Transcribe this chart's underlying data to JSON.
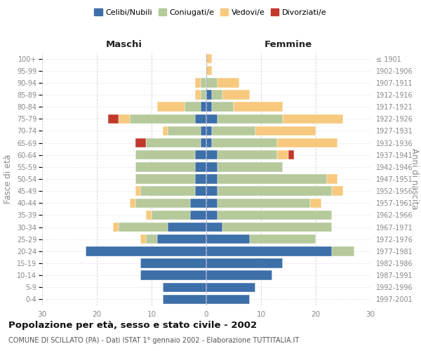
{
  "age_groups": [
    "0-4",
    "5-9",
    "10-14",
    "15-19",
    "20-24",
    "25-29",
    "30-34",
    "35-39",
    "40-44",
    "45-49",
    "50-54",
    "55-59",
    "60-64",
    "65-69",
    "70-74",
    "75-79",
    "80-84",
    "85-89",
    "90-94",
    "95-99",
    "100+"
  ],
  "birth_years": [
    "1997-2001",
    "1992-1996",
    "1987-1991",
    "1982-1986",
    "1977-1981",
    "1972-1976",
    "1967-1971",
    "1962-1966",
    "1957-1961",
    "1952-1956",
    "1947-1951",
    "1942-1946",
    "1937-1941",
    "1932-1936",
    "1927-1931",
    "1922-1926",
    "1917-1921",
    "1912-1916",
    "1907-1911",
    "1902-1906",
    "≤ 1901"
  ],
  "colors": {
    "celibi": "#3d6fa8",
    "coniugati": "#b5c99a",
    "vedovi": "#f7c97e",
    "divorziati": "#c0392b"
  },
  "males": {
    "celibi": [
      8,
      8,
      12,
      12,
      22,
      9,
      7,
      3,
      3,
      2,
      2,
      2,
      2,
      1,
      1,
      2,
      1,
      0,
      0,
      0,
      0
    ],
    "coniugati": [
      0,
      0,
      0,
      0,
      0,
      2,
      9,
      7,
      10,
      10,
      11,
      11,
      11,
      10,
      6,
      12,
      3,
      1,
      1,
      0,
      0
    ],
    "vedovi": [
      0,
      0,
      0,
      0,
      0,
      1,
      1,
      1,
      1,
      1,
      0,
      0,
      0,
      0,
      1,
      2,
      5,
      1,
      1,
      0,
      0
    ],
    "divorziati": [
      0,
      0,
      0,
      0,
      0,
      0,
      0,
      0,
      0,
      0,
      0,
      0,
      0,
      2,
      0,
      2,
      0,
      0,
      0,
      0,
      0
    ]
  },
  "females": {
    "celibi": [
      8,
      9,
      12,
      14,
      23,
      8,
      3,
      2,
      2,
      2,
      2,
      2,
      2,
      1,
      1,
      2,
      1,
      1,
      0,
      0,
      0
    ],
    "coniugati": [
      0,
      0,
      0,
      0,
      4,
      12,
      20,
      21,
      17,
      21,
      20,
      12,
      11,
      12,
      8,
      12,
      4,
      2,
      2,
      0,
      0
    ],
    "vedovi": [
      0,
      0,
      0,
      0,
      0,
      0,
      0,
      0,
      2,
      2,
      2,
      0,
      2,
      11,
      11,
      11,
      9,
      5,
      4,
      1,
      1
    ],
    "divorziati": [
      0,
      0,
      0,
      0,
      0,
      0,
      0,
      0,
      0,
      0,
      0,
      0,
      1,
      0,
      0,
      0,
      0,
      0,
      0,
      0,
      0
    ]
  },
  "xlim": 30,
  "title": "Popolazione per età, sesso e stato civile - 2002",
  "subtitle": "COMUNE DI SCILLATO (PA) - Dati ISTAT 1° gennaio 2002 - Elaborazione TUTTITALIA.IT",
  "xlabel_left": "Maschi",
  "xlabel_right": "Femmine",
  "ylabel_left": "Fasce di età",
  "ylabel_right": "Anni di nascita",
  "bg_color": "#ffffff",
  "grid_color": "#cccccc",
  "center_line_color": "#aaaacc",
  "tick_color": "#888888",
  "label_color": "#333333"
}
